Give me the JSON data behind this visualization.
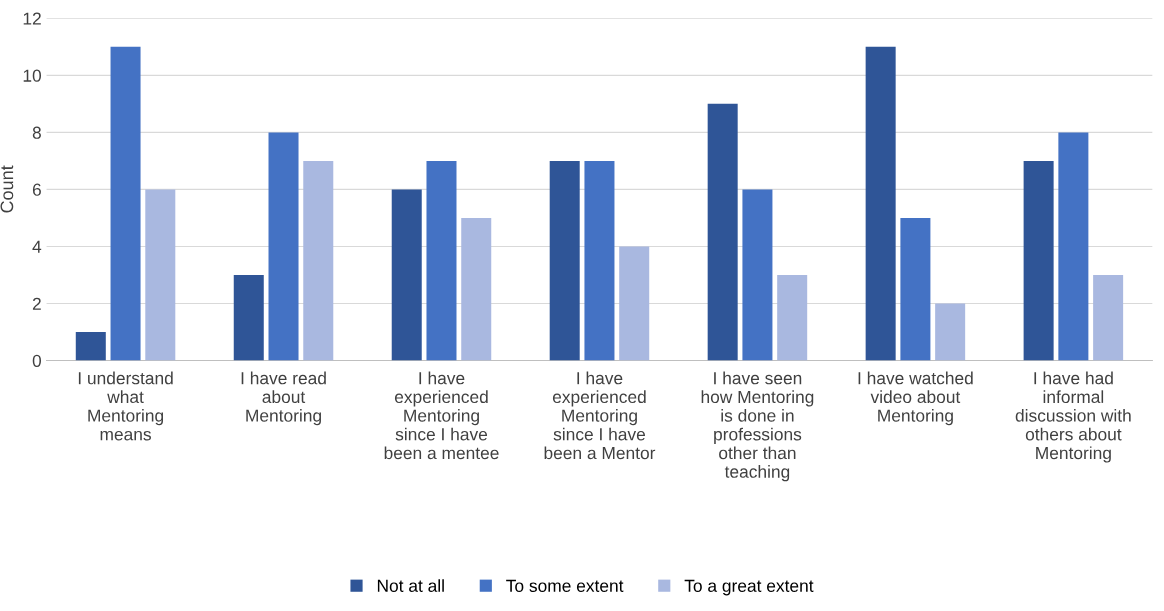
{
  "chart_data": {
    "type": "bar",
    "ylabel": "Count",
    "categories": [
      "I understand\nwhat\nMentoring\nmeans",
      "I have read\nabout\nMentoring",
      "I have\nexperienced\nMentoring\nsince I have\nbeen a mentee",
      "I have\nexperienced\nMentoring\nsince I have\nbeen a Mentor",
      "I have seen\nhow Mentoring\nis done in\nprofessions\nother than\nteaching",
      "I have watched\nvideo about\nMentoring",
      "I have had\ninformal\ndiscussion with\nothers about\nMentoring"
    ],
    "series": [
      {
        "name": "Not at all",
        "color": "#2f5597",
        "values": [
          1,
          3,
          6,
          7,
          9,
          11,
          7
        ]
      },
      {
        "name": "To some extent",
        "color": "#4472c4",
        "values": [
          11,
          8,
          7,
          7,
          6,
          5,
          8
        ]
      },
      {
        "name": "To a great extent",
        "color": "#a9b8e0",
        "values": [
          6,
          7,
          5,
          4,
          3,
          2,
          3
        ]
      }
    ],
    "ylim": [
      0,
      12
    ],
    "yticks": [
      0,
      2,
      4,
      6,
      8,
      10,
      12
    ],
    "grid": "y",
    "legend": "bottom"
  }
}
